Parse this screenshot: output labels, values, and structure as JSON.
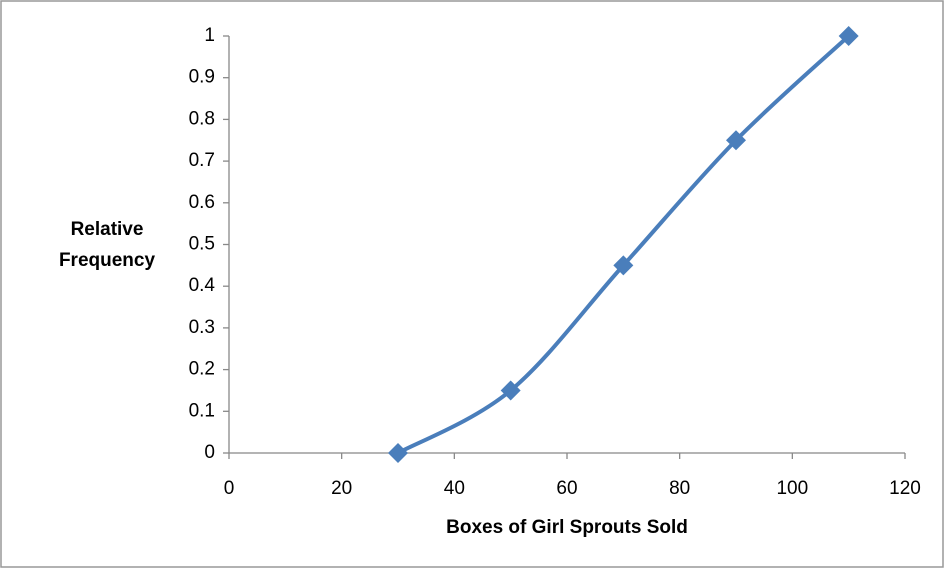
{
  "chart_data": {
    "type": "line",
    "x_label": "Boxes of Girl Sprouts Sold",
    "y_label": "Relative Frequency",
    "x": [
      30,
      50,
      70,
      90,
      110
    ],
    "values": [
      0,
      0.15,
      0.45,
      0.75,
      1
    ],
    "color": "#4a7ebb",
    "smooth": true,
    "xlim": [
      0,
      120
    ],
    "xticks": [
      0,
      20,
      40,
      60,
      80,
      100,
      120
    ],
    "ylim": [
      0,
      1
    ],
    "yticks": [
      0,
      0.1,
      0.2,
      0.3,
      0.4,
      0.5,
      0.6,
      0.7,
      0.8,
      0.9,
      1
    ],
    "grid": false
  }
}
